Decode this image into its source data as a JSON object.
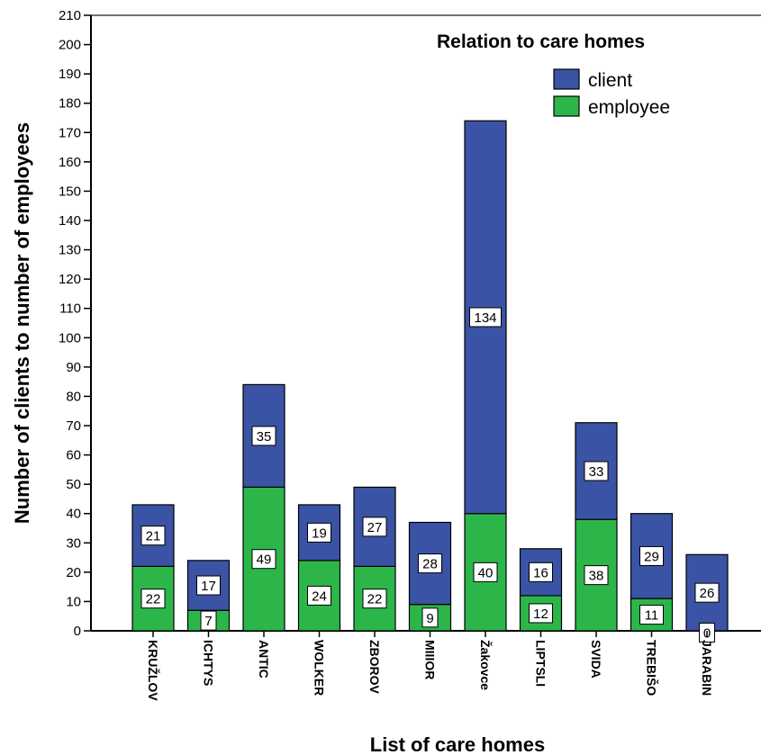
{
  "chart_data": {
    "type": "bar",
    "stacked": true,
    "title": "",
    "xlabel": "List of care homes",
    "ylabel": "Number of clients to number of employees",
    "legend_title": "Relation to care homes",
    "legend_position": "top-right",
    "ylim": [
      0,
      210
    ],
    "y_tick_step": 10,
    "grid": false,
    "categories": [
      "KRUŽLOV",
      "ICHTYS",
      "ANTIC",
      "WOLKER",
      "ZBOROV",
      "MIIIOR",
      "Žakovce",
      "LIPTSLI",
      "SVIDA",
      "TREBIŠO",
      "JARABIN"
    ],
    "series": [
      {
        "name": "employee",
        "color": "#2cb64a",
        "values": [
          22,
          7,
          49,
          24,
          22,
          9,
          40,
          12,
          38,
          11,
          0
        ]
      },
      {
        "name": "client",
        "color": "#3b53a4",
        "values": [
          21,
          17,
          35,
          19,
          27,
          28,
          134,
          16,
          33,
          29,
          26
        ]
      }
    ]
  }
}
